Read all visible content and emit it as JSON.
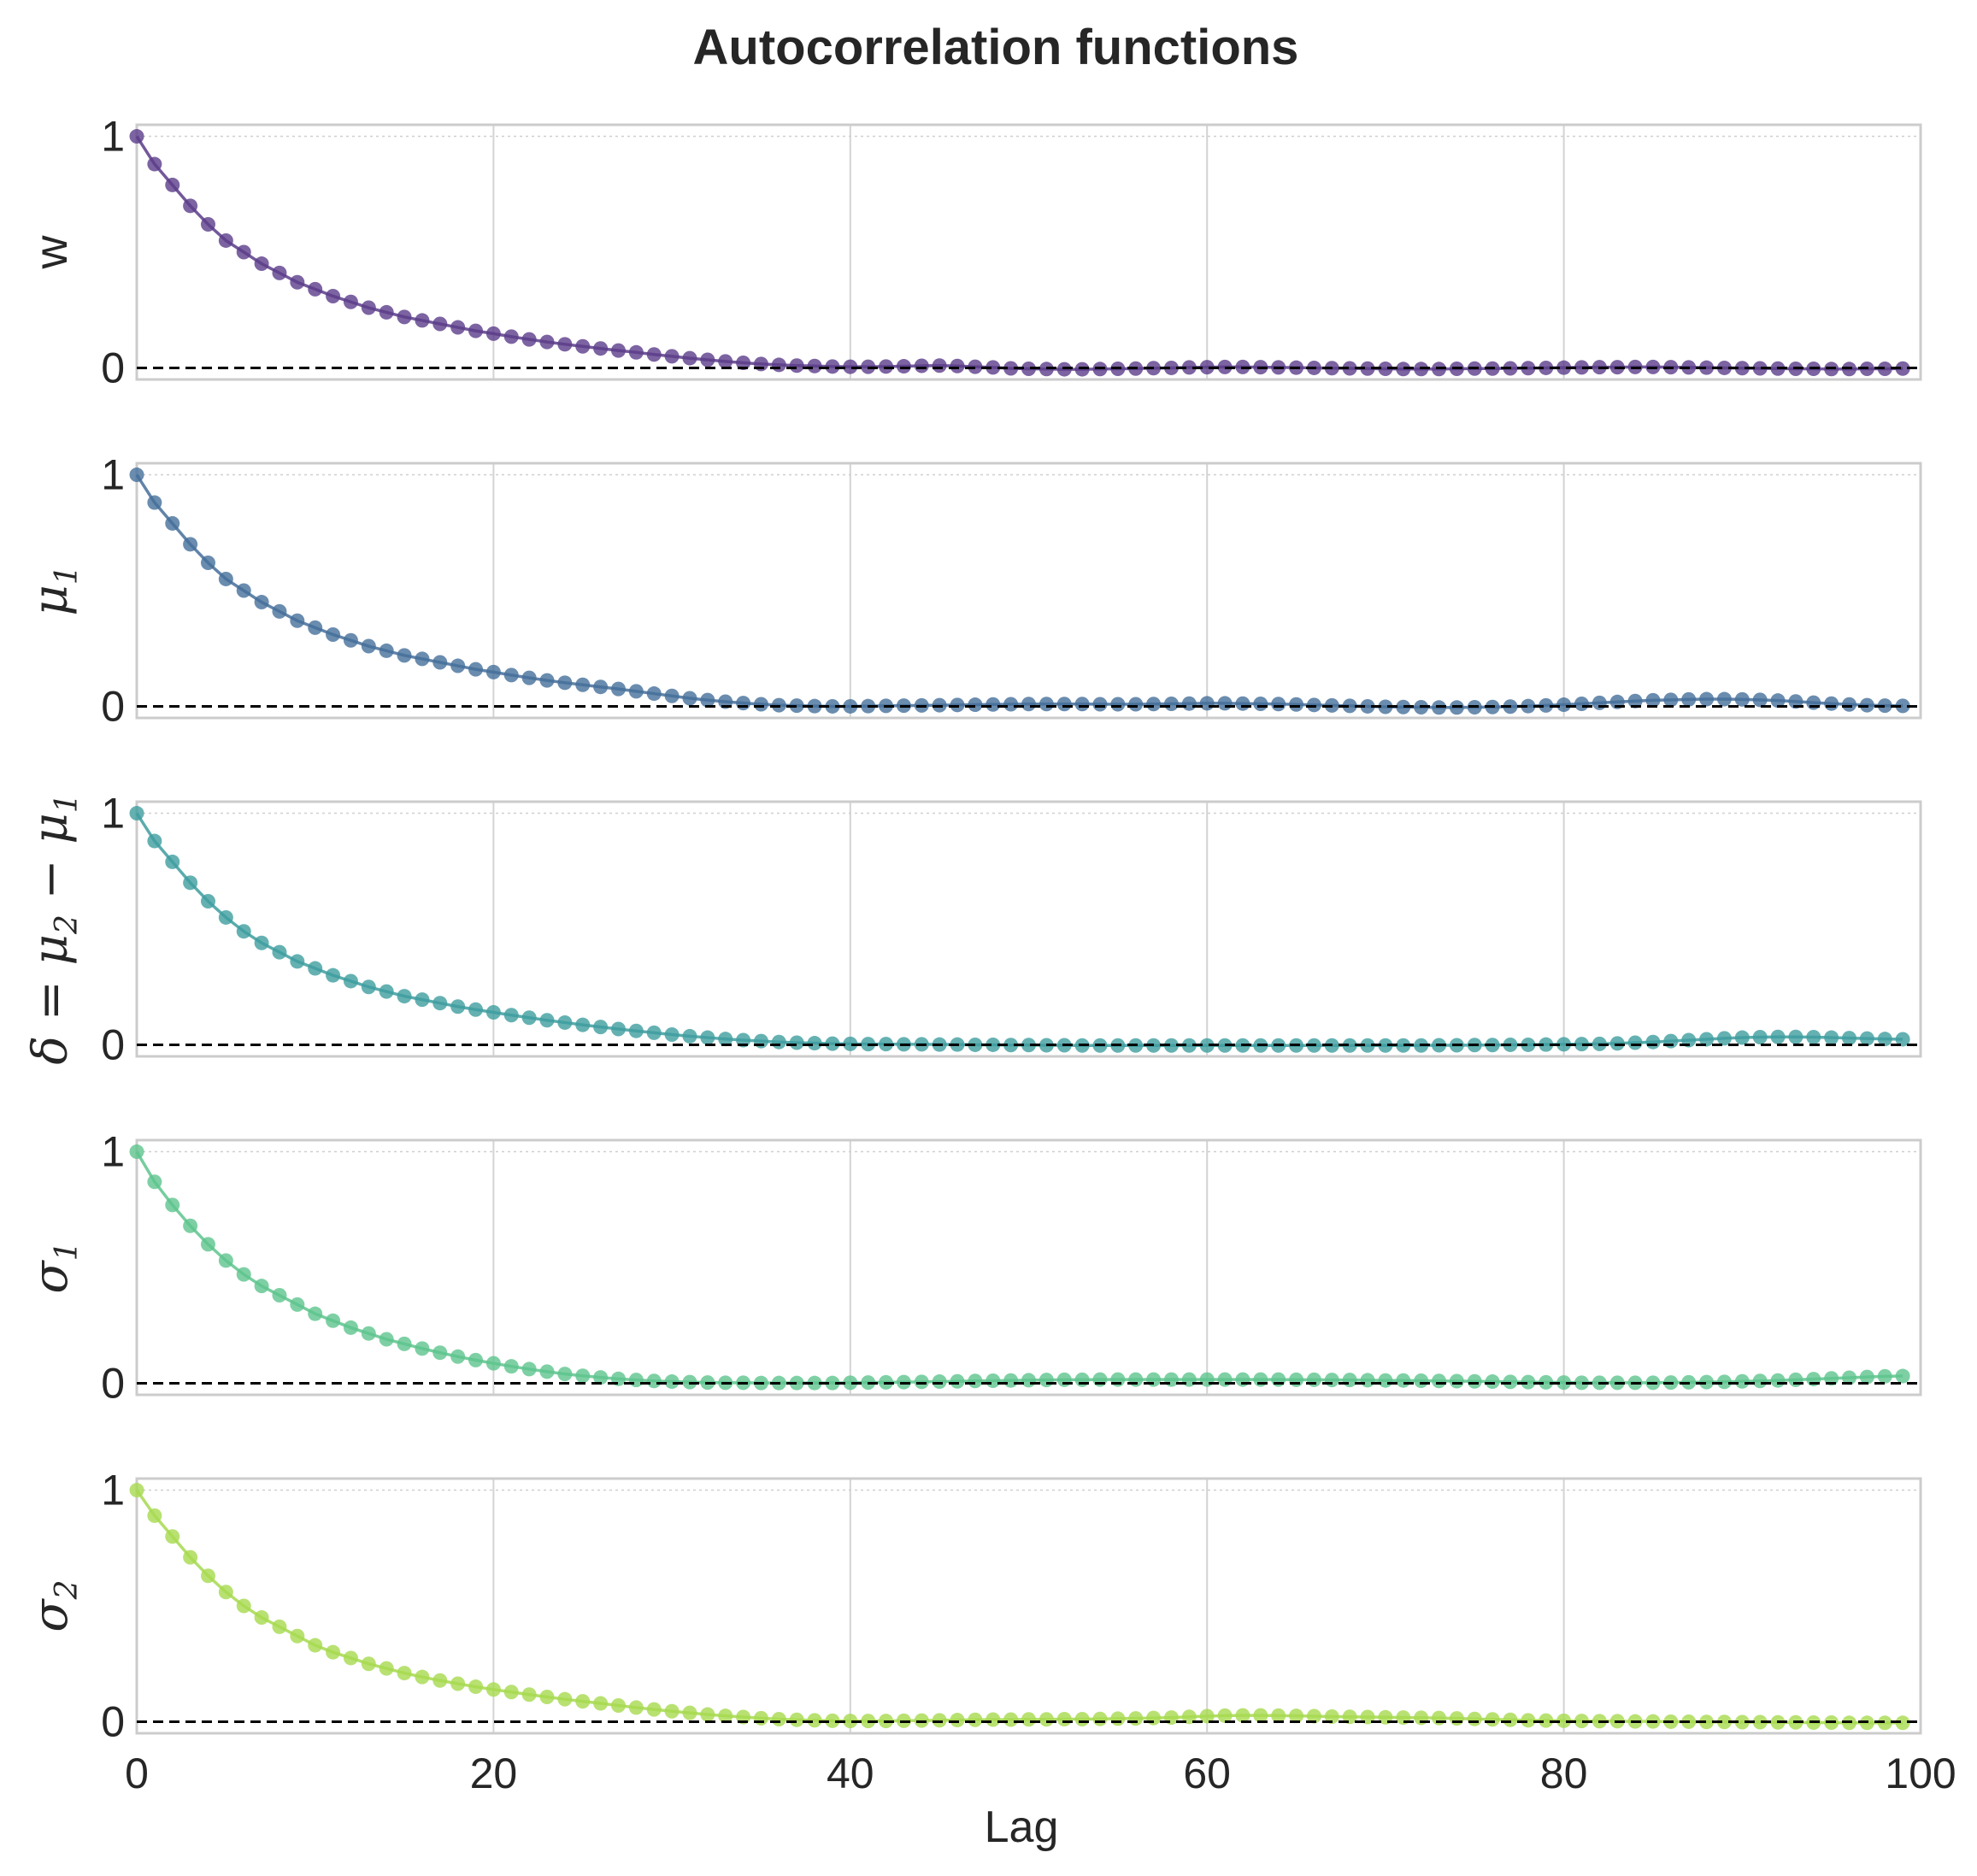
{
  "chart_data": {
    "type": "line",
    "title": "Autocorrelation functions",
    "xlabel": "Lag",
    "xlim": [
      0,
      100
    ],
    "xticks": [
      0,
      20,
      40,
      60,
      80,
      100
    ],
    "xtick_labels": [
      "0",
      "20",
      "40",
      "60",
      "80",
      "100"
    ],
    "ylim": [
      -0.05,
      1.05
    ],
    "yticks": [
      0,
      1
    ],
    "ytick_labels": [
      "0",
      "1"
    ],
    "reference_line": 0,
    "grid": true,
    "panels": [
      {
        "name": "w",
        "ylabel": "w",
        "color": "#5b3c8a",
        "y": [
          1.0,
          0.88,
          0.79,
          0.7,
          0.62,
          0.55,
          0.5,
          0.45,
          0.41,
          0.37,
          0.34,
          0.31,
          0.285,
          0.26,
          0.24,
          0.22,
          0.205,
          0.19,
          0.175,
          0.16,
          0.148,
          0.135,
          0.123,
          0.112,
          0.102,
          0.093,
          0.084,
          0.075,
          0.067,
          0.058,
          0.05,
          0.042,
          0.035,
          0.028,
          0.022,
          0.017,
          0.013,
          0.01,
          0.008,
          0.006,
          0.005,
          0.005,
          0.006,
          0.007,
          0.009,
          0.01,
          0.008,
          0.005,
          0.002,
          -0.002,
          -0.004,
          -0.005,
          -0.006,
          -0.006,
          -0.005,
          -0.004,
          -0.003,
          -0.001,
          0.0,
          0.002,
          0.003,
          0.004,
          0.004,
          0.003,
          0.002,
          0.001,
          0.0,
          -0.001,
          -0.002,
          -0.003,
          -0.004,
          -0.005,
          -0.005,
          -0.005,
          -0.004,
          -0.003,
          -0.003,
          -0.002,
          -0.001,
          0.0,
          0.001,
          0.002,
          0.003,
          0.003,
          0.004,
          0.004,
          0.003,
          0.002,
          0.001,
          0.0,
          -0.001,
          -0.002,
          -0.003,
          -0.004,
          -0.004,
          -0.005,
          -0.005,
          -0.004,
          -0.004,
          -0.003
        ]
      },
      {
        "name": "mu1",
        "ylabel": "μ",
        "ylabel_sub": "1",
        "color": "#456f9a",
        "y": [
          1.0,
          0.88,
          0.79,
          0.7,
          0.62,
          0.55,
          0.5,
          0.45,
          0.41,
          0.37,
          0.34,
          0.31,
          0.285,
          0.26,
          0.24,
          0.22,
          0.205,
          0.19,
          0.175,
          0.16,
          0.148,
          0.135,
          0.123,
          0.112,
          0.102,
          0.093,
          0.084,
          0.075,
          0.065,
          0.055,
          0.045,
          0.035,
          0.027,
          0.02,
          0.014,
          0.009,
          0.005,
          0.003,
          0.001,
          0.0,
          0.0,
          0.001,
          0.002,
          0.003,
          0.004,
          0.005,
          0.006,
          0.007,
          0.008,
          0.009,
          0.01,
          0.01,
          0.01,
          0.01,
          0.009,
          0.009,
          0.009,
          0.01,
          0.011,
          0.012,
          0.013,
          0.013,
          0.012,
          0.011,
          0.01,
          0.008,
          0.006,
          0.004,
          0.002,
          0.0,
          -0.002,
          -0.003,
          -0.004,
          -0.005,
          -0.005,
          -0.004,
          -0.003,
          -0.001,
          0.001,
          0.004,
          0.007,
          0.011,
          0.015,
          0.019,
          0.023,
          0.026,
          0.028,
          0.03,
          0.031,
          0.031,
          0.03,
          0.028,
          0.025,
          0.021,
          0.016,
          0.012,
          0.008,
          0.005,
          0.003,
          0.002
        ]
      },
      {
        "name": "delta",
        "ylabel": "δ = μ",
        "ylabel_sub": "2",
        "ylabel_tail": " − μ",
        "ylabel_sub2": "1",
        "color": "#3e9e9f",
        "y": [
          1.0,
          0.88,
          0.79,
          0.7,
          0.62,
          0.55,
          0.49,
          0.44,
          0.4,
          0.36,
          0.33,
          0.3,
          0.275,
          0.25,
          0.23,
          0.21,
          0.195,
          0.18,
          0.165,
          0.152,
          0.14,
          0.128,
          0.117,
          0.106,
          0.096,
          0.086,
          0.077,
          0.068,
          0.06,
          0.052,
          0.044,
          0.037,
          0.031,
          0.025,
          0.02,
          0.016,
          0.012,
          0.009,
          0.007,
          0.005,
          0.004,
          0.003,
          0.003,
          0.002,
          0.002,
          0.001,
          0.001,
          0.0,
          0.0,
          -0.001,
          -0.001,
          -0.002,
          -0.002,
          -0.003,
          -0.003,
          -0.003,
          -0.003,
          -0.003,
          -0.003,
          -0.003,
          -0.003,
          -0.003,
          -0.003,
          -0.003,
          -0.003,
          -0.003,
          -0.003,
          -0.003,
          -0.003,
          -0.003,
          -0.003,
          -0.003,
          -0.003,
          -0.002,
          -0.002,
          -0.001,
          -0.001,
          0.0,
          0.0,
          0.001,
          0.002,
          0.003,
          0.004,
          0.006,
          0.009,
          0.012,
          0.016,
          0.02,
          0.024,
          0.028,
          0.031,
          0.033,
          0.034,
          0.034,
          0.033,
          0.031,
          0.029,
          0.027,
          0.025,
          0.024
        ]
      },
      {
        "name": "sigma1",
        "ylabel": "σ",
        "ylabel_sub": "1",
        "color": "#5ec48d",
        "y": [
          1.0,
          0.87,
          0.77,
          0.68,
          0.6,
          0.53,
          0.47,
          0.42,
          0.38,
          0.34,
          0.3,
          0.27,
          0.24,
          0.215,
          0.19,
          0.17,
          0.15,
          0.132,
          0.115,
          0.1,
          0.086,
          0.073,
          0.061,
          0.05,
          0.04,
          0.032,
          0.025,
          0.019,
          0.014,
          0.01,
          0.007,
          0.005,
          0.003,
          0.002,
          0.002,
          0.001,
          0.001,
          0.001,
          0.001,
          0.001,
          0.002,
          0.003,
          0.004,
          0.005,
          0.006,
          0.007,
          0.008,
          0.01,
          0.011,
          0.012,
          0.013,
          0.014,
          0.015,
          0.015,
          0.016,
          0.016,
          0.016,
          0.016,
          0.016,
          0.016,
          0.016,
          0.016,
          0.016,
          0.016,
          0.016,
          0.015,
          0.015,
          0.014,
          0.014,
          0.013,
          0.012,
          0.012,
          0.011,
          0.01,
          0.009,
          0.008,
          0.007,
          0.006,
          0.005,
          0.004,
          0.003,
          0.002,
          0.002,
          0.002,
          0.002,
          0.002,
          0.003,
          0.004,
          0.005,
          0.006,
          0.008,
          0.01,
          0.012,
          0.015,
          0.018,
          0.021,
          0.024,
          0.027,
          0.03,
          0.031
        ]
      },
      {
        "name": "sigma2",
        "ylabel": "σ",
        "ylabel_sub": "2",
        "color": "#a6d94f",
        "y": [
          1.0,
          0.89,
          0.8,
          0.71,
          0.63,
          0.56,
          0.5,
          0.45,
          0.41,
          0.37,
          0.33,
          0.3,
          0.275,
          0.25,
          0.23,
          0.21,
          0.193,
          0.178,
          0.164,
          0.151,
          0.139,
          0.128,
          0.117,
          0.107,
          0.097,
          0.088,
          0.079,
          0.07,
          0.061,
          0.053,
          0.045,
          0.038,
          0.031,
          0.025,
          0.02,
          0.015,
          0.011,
          0.008,
          0.006,
          0.004,
          0.003,
          0.003,
          0.003,
          0.004,
          0.005,
          0.006,
          0.007,
          0.008,
          0.009,
          0.009,
          0.01,
          0.01,
          0.011,
          0.011,
          0.012,
          0.013,
          0.014,
          0.016,
          0.018,
          0.021,
          0.024,
          0.026,
          0.027,
          0.027,
          0.026,
          0.025,
          0.024,
          0.022,
          0.021,
          0.02,
          0.019,
          0.018,
          0.017,
          0.016,
          0.014,
          0.012,
          0.01,
          0.008,
          0.006,
          0.005,
          0.004,
          0.003,
          0.002,
          0.002,
          0.001,
          0.001,
          0.0,
          0.0,
          -0.001,
          -0.001,
          -0.002,
          -0.002,
          -0.003,
          -0.003,
          -0.004,
          -0.004,
          -0.005,
          -0.005,
          -0.005,
          -0.005
        ]
      }
    ]
  }
}
